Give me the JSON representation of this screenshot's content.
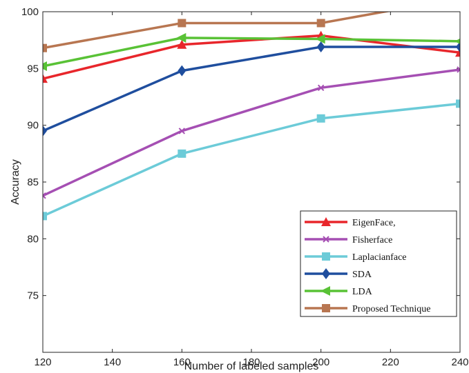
{
  "chart_data": {
    "type": "line",
    "title": "",
    "xlabel": "Number of labeled samples",
    "ylabel": "Accuracy",
    "xlim": [
      120,
      240
    ],
    "ylim": [
      70,
      100
    ],
    "xticks": [
      120,
      140,
      160,
      180,
      200,
      220,
      240
    ],
    "yticks": [
      75,
      80,
      85,
      90,
      95,
      100
    ],
    "x": [
      120,
      160,
      200,
      240
    ],
    "grid": false,
    "legend_position": "bottom-right",
    "series": [
      {
        "name": "EigenFace,",
        "color": "#e8262b",
        "marker": "triangle-up",
        "values": [
          94.1,
          97.1,
          97.9,
          96.4
        ]
      },
      {
        "name": "Fisherface",
        "color": "#a54fb3",
        "marker": "x",
        "values": [
          83.8,
          89.5,
          93.3,
          94.9
        ]
      },
      {
        "name": "Laplacianface",
        "color": "#6ccbd8",
        "marker": "square",
        "values": [
          82.0,
          87.5,
          90.6,
          91.9
        ]
      },
      {
        "name": "SDA",
        "color": "#1f4e9e",
        "marker": "diamond",
        "values": [
          89.5,
          94.8,
          96.9,
          96.9
        ]
      },
      {
        "name": "LDA",
        "color": "#59c236",
        "marker": "triangle-left",
        "values": [
          95.2,
          97.7,
          97.6,
          97.4
        ]
      },
      {
        "name": "Proposed Technique",
        "color": "#b87651",
        "marker": "square",
        "values": [
          96.8,
          99.0,
          99.0,
          101.2
        ]
      }
    ]
  }
}
